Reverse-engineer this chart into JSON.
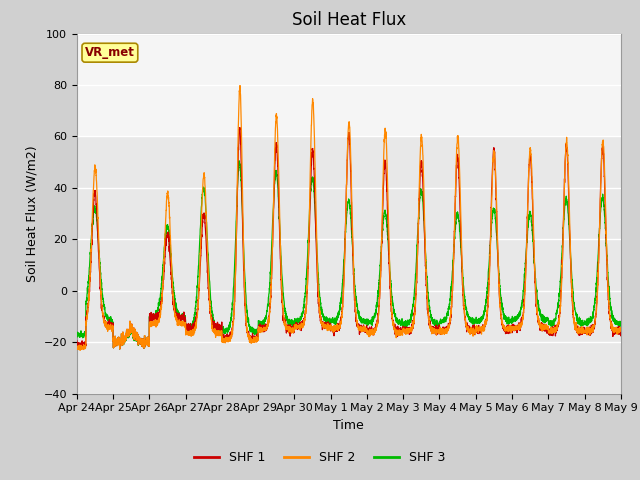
{
  "title": "Soil Heat Flux",
  "ylabel": "Soil Heat Flux (W/m2)",
  "xlabel": "Time",
  "ylim": [
    -40,
    100
  ],
  "yticks": [
    -40,
    -20,
    0,
    20,
    40,
    60,
    80,
    100
  ],
  "fig_bg_color": "#d0d0d0",
  "plot_bg_color": "#e8e8e8",
  "plot_bg_top_color": "#f5f5f5",
  "shf1_color": "#cc0000",
  "shf2_color": "#ff8800",
  "shf3_color": "#00bb00",
  "legend_labels": [
    "SHF 1",
    "SHF 2",
    "SHF 3"
  ],
  "annotation_text": "VR_met",
  "annotation_bg": "#ffff99",
  "annotation_border": "#aa8800",
  "annotation_text_color": "#880000",
  "xticklabels": [
    "Apr 24",
    "Apr 25",
    "Apr 26",
    "Apr 27",
    "Apr 28",
    "Apr 29",
    "Apr 30",
    "May 1",
    "May 2",
    "May 3",
    "May 4",
    "May 5",
    "May 6",
    "May 7",
    "May 8",
    "May 9"
  ],
  "n_days": 15,
  "pts_per_day": 288,
  "title_fontsize": 12,
  "axis_label_fontsize": 9,
  "tick_fontsize": 8,
  "shaded_band_min": 60,
  "shaded_band_max": 100
}
